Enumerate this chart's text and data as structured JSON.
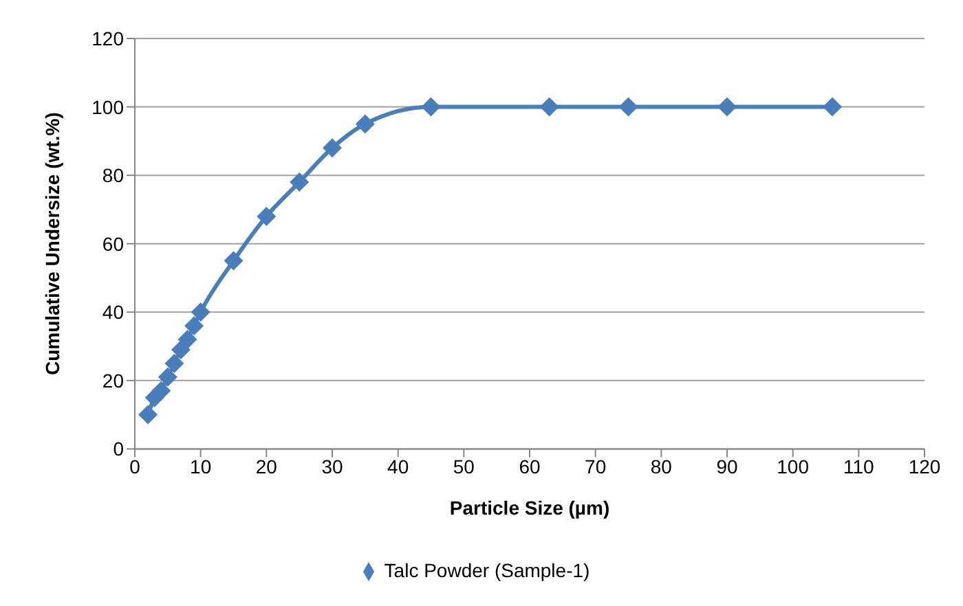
{
  "chart_data": {
    "type": "line",
    "xlabel": "Particle Size (µm)",
    "ylabel": "Cumulative Undersize (wt.%)",
    "x": [
      2,
      3,
      4,
      5,
      6,
      7,
      8,
      9,
      10,
      15,
      20,
      25,
      30,
      35,
      45,
      63,
      75,
      90,
      106
    ],
    "series": [
      {
        "name": "Talc Powder (Sample-1)",
        "color": "#4a7ebb",
        "values": [
          10,
          15,
          17,
          21,
          25,
          29,
          32,
          36,
          40,
          55,
          68,
          78,
          88,
          95,
          100,
          100,
          100,
          100,
          100
        ]
      }
    ],
    "xlim": [
      0,
      120
    ],
    "xticks": [
      0,
      10,
      20,
      30,
      40,
      50,
      60,
      70,
      80,
      90,
      100,
      110,
      120
    ],
    "ylim": [
      0,
      120
    ],
    "yticks": [
      0,
      20,
      40,
      60,
      80,
      100,
      120
    ],
    "grid": "y",
    "legend": "bottom",
    "marker": "diamond",
    "line_style": "solid"
  }
}
